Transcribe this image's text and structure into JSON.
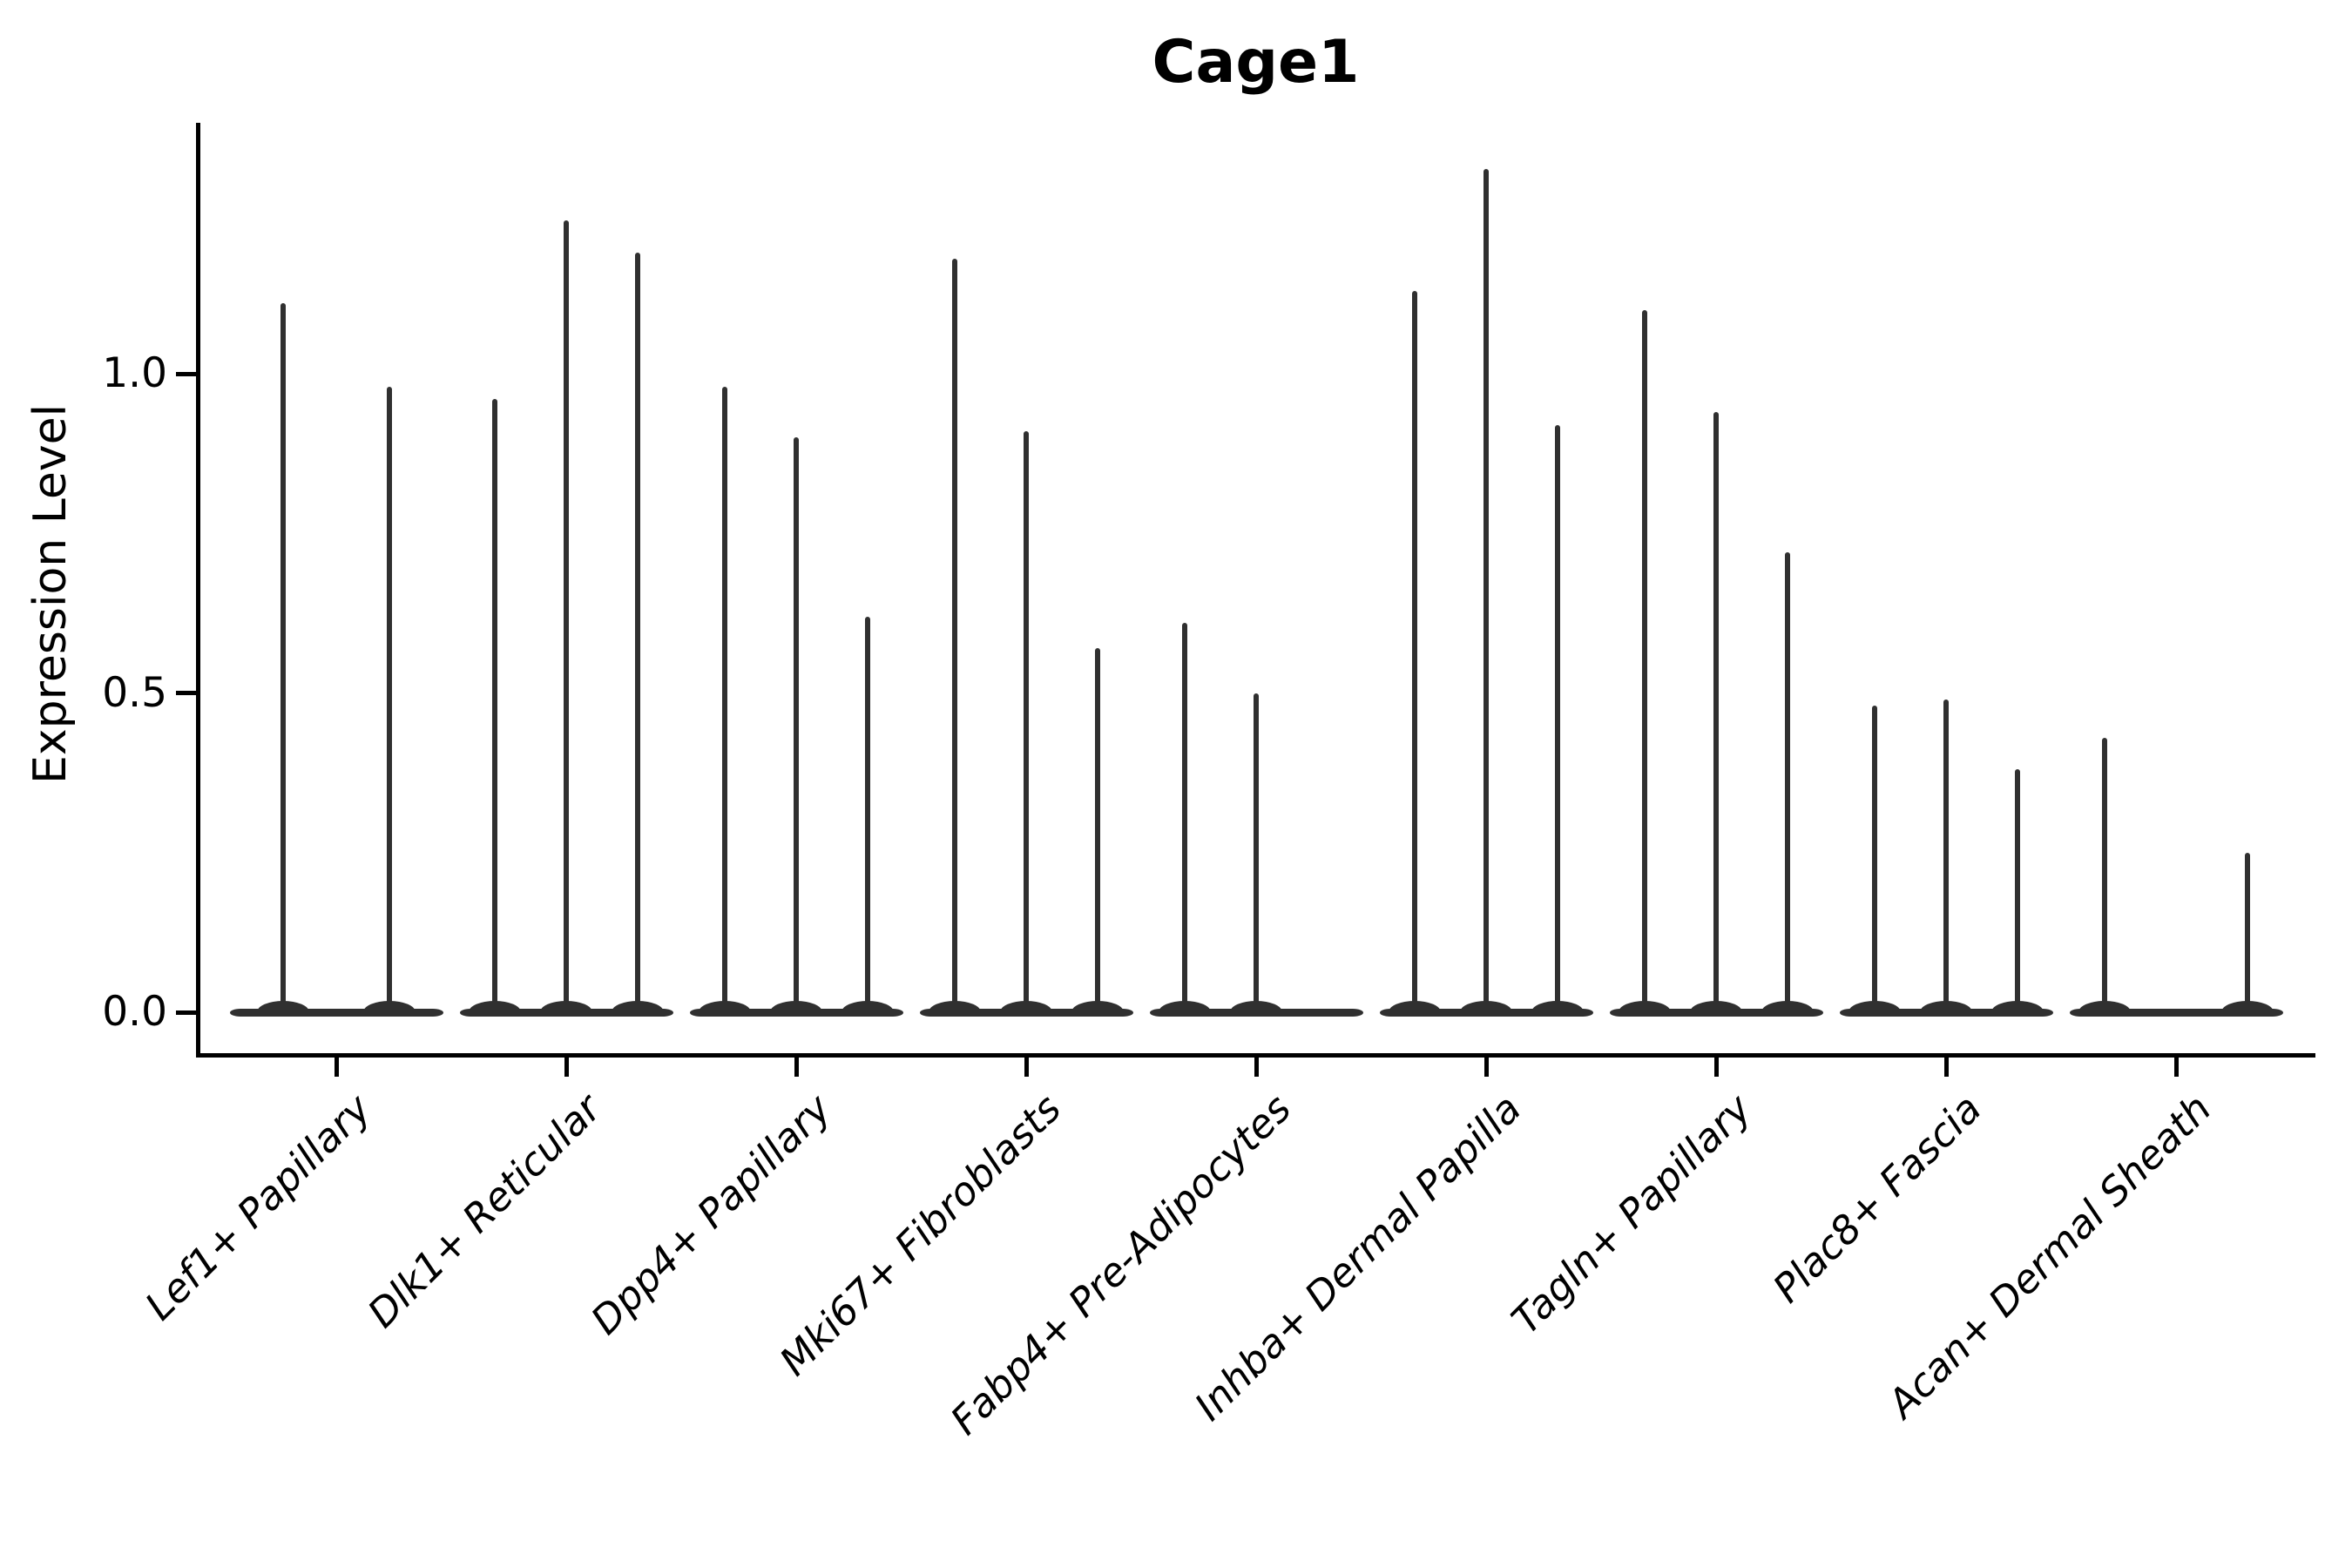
{
  "title": "Cage1",
  "chart_data": {
    "type": "violin",
    "title": "Cage1",
    "ylabel": "Expression Level",
    "xlabel": "",
    "ytick_labels": [
      "0.0",
      "0.5",
      "1.0"
    ],
    "ytick_values": [
      0.0,
      0.5,
      1.0
    ],
    "ylim": [
      -0.07,
      1.39
    ],
    "grid": false,
    "legend": "none",
    "categories": [
      "Lef1+ Papillary",
      "Dlk1+ Reticular",
      "Dpp4+ Papillary",
      "Mki67+ Fibroblasts",
      "Fabp4+ Pre-Adipocytes",
      "Inhba+ Dermal Papilla",
      "Tagln+ Papillary",
      "Plac8+ Fascia",
      "Acan+ Dermal Sheath"
    ],
    "series": [
      {
        "category": "Lef1+ Papillary",
        "violin_max_values": [
          1.11,
          0.98
        ]
      },
      {
        "category": "Dlk1+ Reticular",
        "violin_max_values": [
          0.96,
          1.24,
          1.19
        ]
      },
      {
        "category": "Dpp4+ Papillary",
        "violin_max_values": [
          0.98,
          0.9,
          0.62
        ]
      },
      {
        "category": "Mki67+ Fibroblasts",
        "violin_max_values": [
          1.18,
          0.91,
          0.57
        ]
      },
      {
        "category": "Fabp4+ Pre-Adipocytes",
        "violin_max_values": [
          0.61,
          0.5,
          0.0
        ]
      },
      {
        "category": "Inhba+ Dermal Papilla",
        "violin_max_values": [
          1.13,
          1.32,
          0.92
        ]
      },
      {
        "category": "Tagln+ Papillary",
        "violin_max_values": [
          1.1,
          0.94,
          0.72
        ]
      },
      {
        "category": "Plac8+ Fascia",
        "violin_max_values": [
          0.48,
          0.49,
          0.38
        ]
      },
      {
        "category": "Acan+ Dermal Sheath",
        "violin_max_values": [
          0.43,
          0.0,
          0.25
        ]
      }
    ],
    "colors": {
      "violin": "#303030",
      "axis": "#000000",
      "text": "#000000",
      "background": "#ffffff"
    }
  }
}
